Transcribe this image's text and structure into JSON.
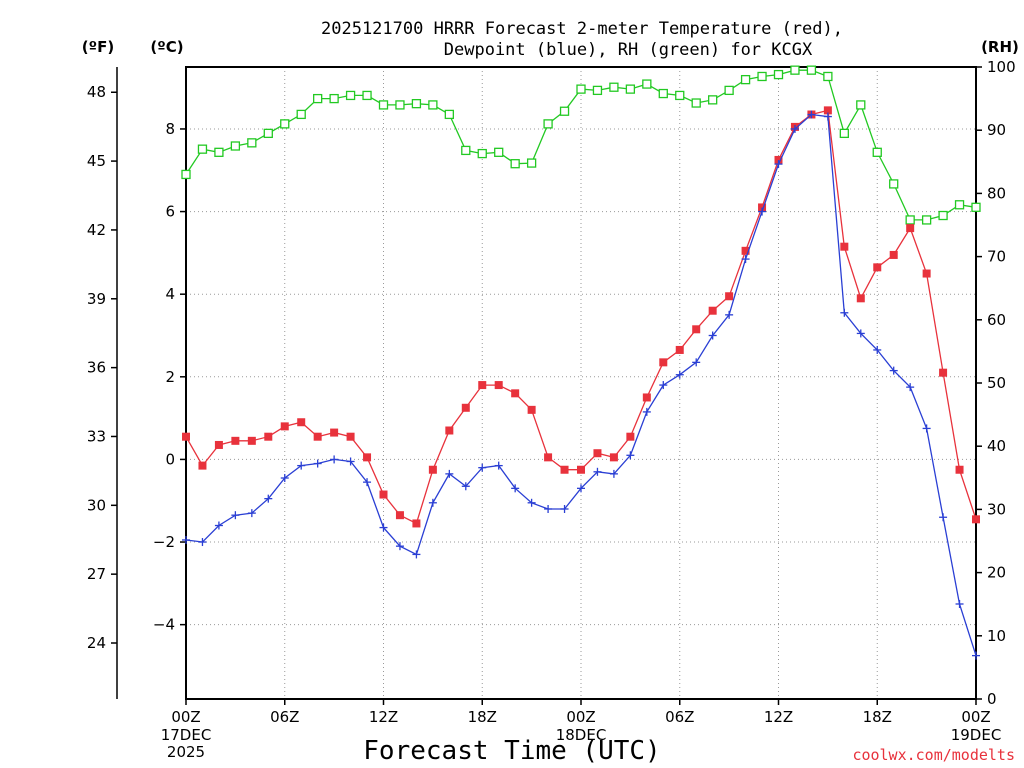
{
  "chart_data": {
    "type": "line",
    "title_lines": [
      "2025121700 HRRR Forecast 2-meter Temperature (red),",
      "Dewpoint (blue), RH (green) for KCGX"
    ],
    "xlabel": "Forecast Time (UTC)",
    "credit": "coolwx.com/modelts",
    "units": {
      "fahrenheit": "(ºF)",
      "celsius": "(ºC)",
      "rh": "(RH)"
    },
    "x_range": [
      0,
      48
    ],
    "y_celsius_range": [
      -5.8,
      9.5
    ],
    "y_rh_range": [
      0,
      100
    ],
    "x_ticks": [
      {
        "hour": 0,
        "label": "00Z"
      },
      {
        "hour": 6,
        "label": "06Z"
      },
      {
        "hour": 12,
        "label": "12Z"
      },
      {
        "hour": 18,
        "label": "18Z"
      },
      {
        "hour": 24,
        "label": "00Z"
      },
      {
        "hour": 30,
        "label": "06Z"
      },
      {
        "hour": 36,
        "label": "12Z"
      },
      {
        "hour": 42,
        "label": "18Z"
      },
      {
        "hour": 48,
        "label": "00Z"
      }
    ],
    "date_labels": [
      {
        "hour": 0,
        "lines": [
          "17DEC",
          "2025"
        ]
      },
      {
        "hour": 24,
        "lines": [
          "18DEC"
        ]
      },
      {
        "hour": 48,
        "lines": [
          "19DEC"
        ]
      }
    ],
    "celsius_ticks": [
      "-4",
      "-2",
      "0",
      "2",
      "4",
      "6",
      "8"
    ],
    "fahrenheit_ticks": [
      "24",
      "27",
      "30",
      "33",
      "36",
      "39",
      "42",
      "45",
      "48"
    ],
    "rh_ticks": [
      "0",
      "10",
      "20",
      "30",
      "40",
      "50",
      "60",
      "70",
      "80",
      "90",
      "100"
    ],
    "grid": true,
    "series": [
      {
        "name": "Temperature (red)",
        "axis": "celsius",
        "color": "#e8323c",
        "marker": "filled-square",
        "x": [
          0,
          1,
          2,
          3,
          4,
          5,
          6,
          7,
          8,
          9,
          10,
          11,
          12,
          13,
          14,
          15,
          16,
          17,
          18,
          19,
          20,
          21,
          22,
          23,
          24,
          25,
          26,
          27,
          28,
          29,
          30,
          31,
          32,
          33,
          34,
          35,
          36,
          37,
          38,
          39,
          40,
          41,
          42,
          43,
          44,
          45,
          46,
          47,
          48
        ],
        "y": [
          0.55,
          -0.15,
          0.35,
          0.45,
          0.45,
          0.55,
          0.8,
          0.9,
          0.55,
          0.65,
          0.55,
          0.05,
          -0.85,
          -1.35,
          -1.55,
          -0.25,
          0.7,
          1.25,
          1.8,
          1.8,
          1.6,
          1.2,
          0.05,
          -0.25,
          -0.25,
          0.15,
          0.05,
          0.55,
          1.5,
          2.35,
          2.65,
          3.15,
          3.6,
          3.95,
          5.05,
          6.1,
          7.25,
          8.05,
          8.35,
          8.45,
          5.15,
          3.9,
          4.65,
          4.95,
          5.6,
          4.5,
          2.1,
          -0.25,
          -1.45
        ]
      },
      {
        "name": "Dewpoint (blue)",
        "axis": "celsius",
        "color": "#2a3fd4",
        "marker": "plus",
        "x": [
          0,
          1,
          2,
          3,
          4,
          5,
          6,
          7,
          8,
          9,
          10,
          11,
          12,
          13,
          14,
          15,
          16,
          17,
          18,
          19,
          20,
          21,
          22,
          23,
          24,
          25,
          26,
          27,
          28,
          29,
          30,
          31,
          32,
          33,
          34,
          35,
          36,
          37,
          38,
          39,
          40,
          41,
          42,
          43,
          44,
          45,
          46,
          47,
          48
        ],
        "y": [
          -1.95,
          -2.0,
          -1.6,
          -1.35,
          -1.3,
          -0.95,
          -0.45,
          -0.15,
          -0.1,
          0.0,
          -0.05,
          -0.55,
          -1.65,
          -2.1,
          -2.3,
          -1.05,
          -0.35,
          -0.65,
          -0.2,
          -0.15,
          -0.7,
          -1.05,
          -1.2,
          -1.2,
          -0.7,
          -0.3,
          -0.35,
          0.1,
          1.15,
          1.8,
          2.05,
          2.35,
          3.0,
          3.5,
          4.85,
          6.0,
          7.15,
          8.0,
          8.35,
          8.3,
          3.55,
          3.05,
          2.65,
          2.15,
          1.75,
          0.75,
          -1.4,
          -3.5,
          -4.75
        ]
      },
      {
        "name": "RH (green)",
        "axis": "rh",
        "color": "#22c922",
        "marker": "open-square",
        "x": [
          0,
          1,
          2,
          3,
          4,
          5,
          6,
          7,
          8,
          9,
          10,
          11,
          12,
          13,
          14,
          15,
          16,
          17,
          18,
          19,
          20,
          21,
          22,
          23,
          24,
          25,
          26,
          27,
          28,
          29,
          30,
          31,
          32,
          33,
          34,
          35,
          36,
          37,
          38,
          39,
          40,
          41,
          42,
          43,
          44,
          45,
          46,
          47,
          48
        ],
        "y": [
          83,
          87,
          86.5,
          87.5,
          88,
          89.5,
          91,
          92.5,
          95,
          95,
          95.5,
          95.5,
          94,
          94,
          94.2,
          94,
          92.5,
          86.8,
          86.3,
          86.5,
          84.7,
          84.8,
          91,
          93,
          96.5,
          96.3,
          96.8,
          96.5,
          97.3,
          95.8,
          95.5,
          94.3,
          94.8,
          96.3,
          98,
          98.5,
          98.8,
          99.5,
          99.5,
          98.5,
          89.5,
          94,
          86.5,
          81.5,
          75.8,
          75.8,
          76.5,
          78.2,
          77.8
        ]
      }
    ]
  }
}
